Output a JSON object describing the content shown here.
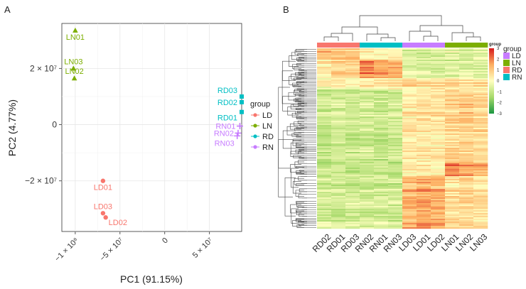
{
  "chart_data": [
    {
      "type": "scatter",
      "panel_label": "A",
      "xlabel": "PC1 (91.15%)",
      "ylabel": "PC2 (4.77%)",
      "xlim": [
        -115000000.0,
        86000000.0
      ],
      "ylim": [
        -38000000.0,
        36000000.0
      ],
      "xticks": [
        {
          "value": -100000000.0,
          "label": "−1 × 10⁸"
        },
        {
          "value": -50000000.0,
          "label": "−5 × 10⁷"
        },
        {
          "value": 0,
          "label": "0"
        },
        {
          "value": 50000000.0,
          "label": "5 × 10⁷"
        }
      ],
      "yticks": [
        {
          "value": 20000000.0,
          "label": "2 × 10⁷"
        },
        {
          "value": 0,
          "label": "0"
        },
        {
          "value": -20000000.0,
          "label": "−2 × 10⁷"
        }
      ],
      "grid": true,
      "legend_title": "group",
      "legend_position": "right",
      "series": [
        {
          "name": "LD",
          "color": "#F8766D",
          "marker": "circle",
          "points": [
            {
              "label": "LD01",
              "x": -69000000.0,
              "y": -20000000.0,
              "label_pos": "below"
            },
            {
              "label": "LD03",
              "x": -69000000.0,
              "y": -31500000.0,
              "label_pos": "above"
            },
            {
              "label": "LD02",
              "x": -66000000.0,
              "y": -33000000.0,
              "label_pos": "below-right"
            }
          ]
        },
        {
          "name": "LN",
          "color": "#7CAE00",
          "marker": "triangle",
          "points": [
            {
              "label": "LN01",
              "x": -100000000.0,
              "y": 33500000.0,
              "label_pos": "below"
            },
            {
              "label": "LN03",
              "x": -102000000.0,
              "y": 20000000.0,
              "label_pos": "above"
            },
            {
              "label": "LN02",
              "x": -101000000.0,
              "y": 16500000.0,
              "label_pos": "above"
            }
          ]
        },
        {
          "name": "RD",
          "color": "#00BFC4",
          "marker": "square",
          "points": [
            {
              "label": "RD03",
              "x": 86000000.0,
              "y": 10000000.0,
              "label_pos": "left-up"
            },
            {
              "label": "RD02",
              "x": 86000000.0,
              "y": 8000000.0,
              "label_pos": "left"
            },
            {
              "label": "RD01",
              "x": 86000000.0,
              "y": 4500000.0,
              "label_pos": "left-down"
            }
          ]
        },
        {
          "name": "RN",
          "color": "#C77CFF",
          "marker": "plus",
          "points": [
            {
              "label": "RN01",
              "x": 84000000.0,
              "y": -500000.0,
              "label_pos": "left"
            },
            {
              "label": "RN02",
              "x": 82000000.0,
              "y": -3000000.0,
              "label_pos": "left"
            },
            {
              "label": "RN03",
              "x": 81000000.0,
              "y": -4000000.0,
              "label_pos": "below-left"
            }
          ]
        }
      ]
    },
    {
      "type": "heatmap",
      "panel_label": "B",
      "columns": [
        "RD02",
        "RD01",
        "RD03",
        "RN02",
        "RN01",
        "RN03",
        "LD03",
        "LD01",
        "LD02",
        "LN01",
        "LN02",
        "LN03"
      ],
      "column_groups": [
        "RD",
        "RD",
        "RD",
        "RN",
        "RN",
        "RN",
        "LD",
        "LD",
        "LD",
        "LN",
        "LN",
        "LN"
      ],
      "group_colors": {
        "LD": "#C77CFF",
        "LN": "#7CAE00",
        "RD": "#F8766D",
        "RN": "#00BFC4"
      },
      "annotation_title": "group",
      "annotation_legend": [
        "LD",
        "LN",
        "RD",
        "RN"
      ],
      "color_scale": {
        "min": -3,
        "max": 3,
        "ticks": [
          3,
          2,
          1,
          0,
          -1,
          -2,
          -3
        ],
        "colors": [
          "#1a9641",
          "#a6d96a",
          "#ffffbf",
          "#fdae61",
          "#d7191c"
        ]
      },
      "row_blocks": [
        {
          "fraction": 0.06,
          "values": [
            1.2,
            1.1,
            0.9,
            0.2,
            0.0,
            0.1,
            -0.6,
            -0.7,
            -0.6,
            -0.5,
            -0.6,
            -0.5
          ]
        },
        {
          "fraction": 0.1,
          "values": [
            0.4,
            0.7,
            0.8,
            1.9,
            1.6,
            1.4,
            -0.5,
            -0.6,
            -0.7,
            -0.6,
            -0.5,
            -0.6
          ]
        },
        {
          "fraction": 0.06,
          "values": [
            0.2,
            0.3,
            0.1,
            0.3,
            0.2,
            0.4,
            0.6,
            0.5,
            0.6,
            0.7,
            0.5,
            0.6
          ]
        },
        {
          "fraction": 0.4,
          "values": [
            -0.9,
            -0.8,
            -0.9,
            -0.8,
            -0.9,
            -0.8,
            0.4,
            0.5,
            0.4,
            0.8,
            0.9,
            0.7
          ]
        },
        {
          "fraction": 0.08,
          "values": [
            -0.9,
            -0.8,
            -0.9,
            -0.9,
            -0.8,
            -0.9,
            0.3,
            0.4,
            0.3,
            2.0,
            1.7,
            1.5
          ]
        },
        {
          "fraction": 0.3,
          "values": [
            -0.7,
            -0.8,
            -0.7,
            -0.8,
            -0.7,
            -0.8,
            1.3,
            1.5,
            1.4,
            0.6,
            0.7,
            0.6
          ]
        }
      ]
    }
  ]
}
